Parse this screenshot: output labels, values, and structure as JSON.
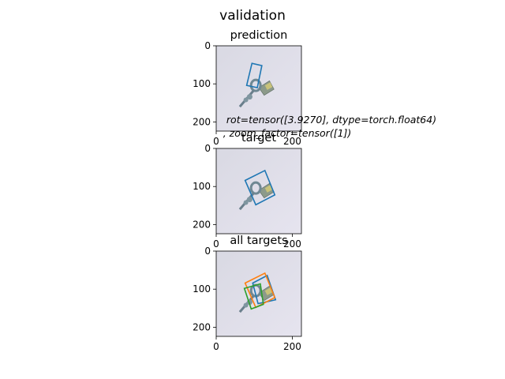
{
  "figure": {
    "suptitle": "validation",
    "annotation_line1": "rot=tensor([3.9270], dtype=torch.float64)",
    "annotation_line2": ", zoom_factor=tensor([1])",
    "colors": {
      "c0": "#1f77b4",
      "c1": "#ff7f0e",
      "c2": "#2ca02c"
    }
  },
  "chart_data": [
    {
      "type": "image_with_boxes",
      "title": "prediction",
      "image_size": [
        224,
        224
      ],
      "xlim": [
        0,
        224
      ],
      "ylim": [
        224,
        0
      ],
      "xticks": [
        0,
        200
      ],
      "yticks": [
        0,
        100,
        200
      ],
      "xtick_labels": [
        "0",
        "200"
      ],
      "ytick_labels": [
        "0",
        "100",
        "200"
      ],
      "boxes": [
        {
          "color": "#1f77b4",
          "points": [
            [
              80,
              104
            ],
            [
              94,
              46
            ],
            [
              120,
              52
            ],
            [
              108,
              110
            ]
          ]
        }
      ]
    },
    {
      "type": "image_with_boxes",
      "title": "target",
      "image_size": [
        224,
        224
      ],
      "xlim": [
        0,
        224
      ],
      "ylim": [
        224,
        0
      ],
      "xticks": [
        0,
        200
      ],
      "yticks": [
        0,
        100,
        200
      ],
      "xtick_labels": [
        "0",
        "200"
      ],
      "ytick_labels": [
        "0",
        "100",
        "200"
      ],
      "boxes": [
        {
          "color": "#1f77b4",
          "points": [
            [
              76,
              84
            ],
            [
              128,
              58
            ],
            [
              154,
              122
            ],
            [
              104,
              148
            ]
          ]
        }
      ]
    },
    {
      "type": "image_with_boxes",
      "title": "all targets",
      "image_size": [
        224,
        224
      ],
      "xlim": [
        0,
        224
      ],
      "ylim": [
        224,
        0
      ],
      "xticks": [
        0,
        200
      ],
      "yticks": [
        0,
        100,
        200
      ],
      "xtick_labels": [
        "0",
        "200"
      ],
      "ytick_labels": [
        "0",
        "100",
        "200"
      ],
      "boxes": [
        {
          "color": "#1f77b4",
          "points": [
            [
              96,
              84
            ],
            [
              134,
              64
            ],
            [
              156,
              128
            ],
            [
              110,
              138
            ]
          ]
        },
        {
          "color": "#ff7f0e",
          "points": [
            [
              76,
              84
            ],
            [
              128,
              58
            ],
            [
              154,
              122
            ],
            [
              104,
              148
            ]
          ]
        },
        {
          "color": "#2ca02c",
          "points": [
            [
              74,
              98
            ],
            [
              116,
              86
            ],
            [
              124,
              140
            ],
            [
              92,
              152
            ]
          ]
        }
      ]
    }
  ]
}
